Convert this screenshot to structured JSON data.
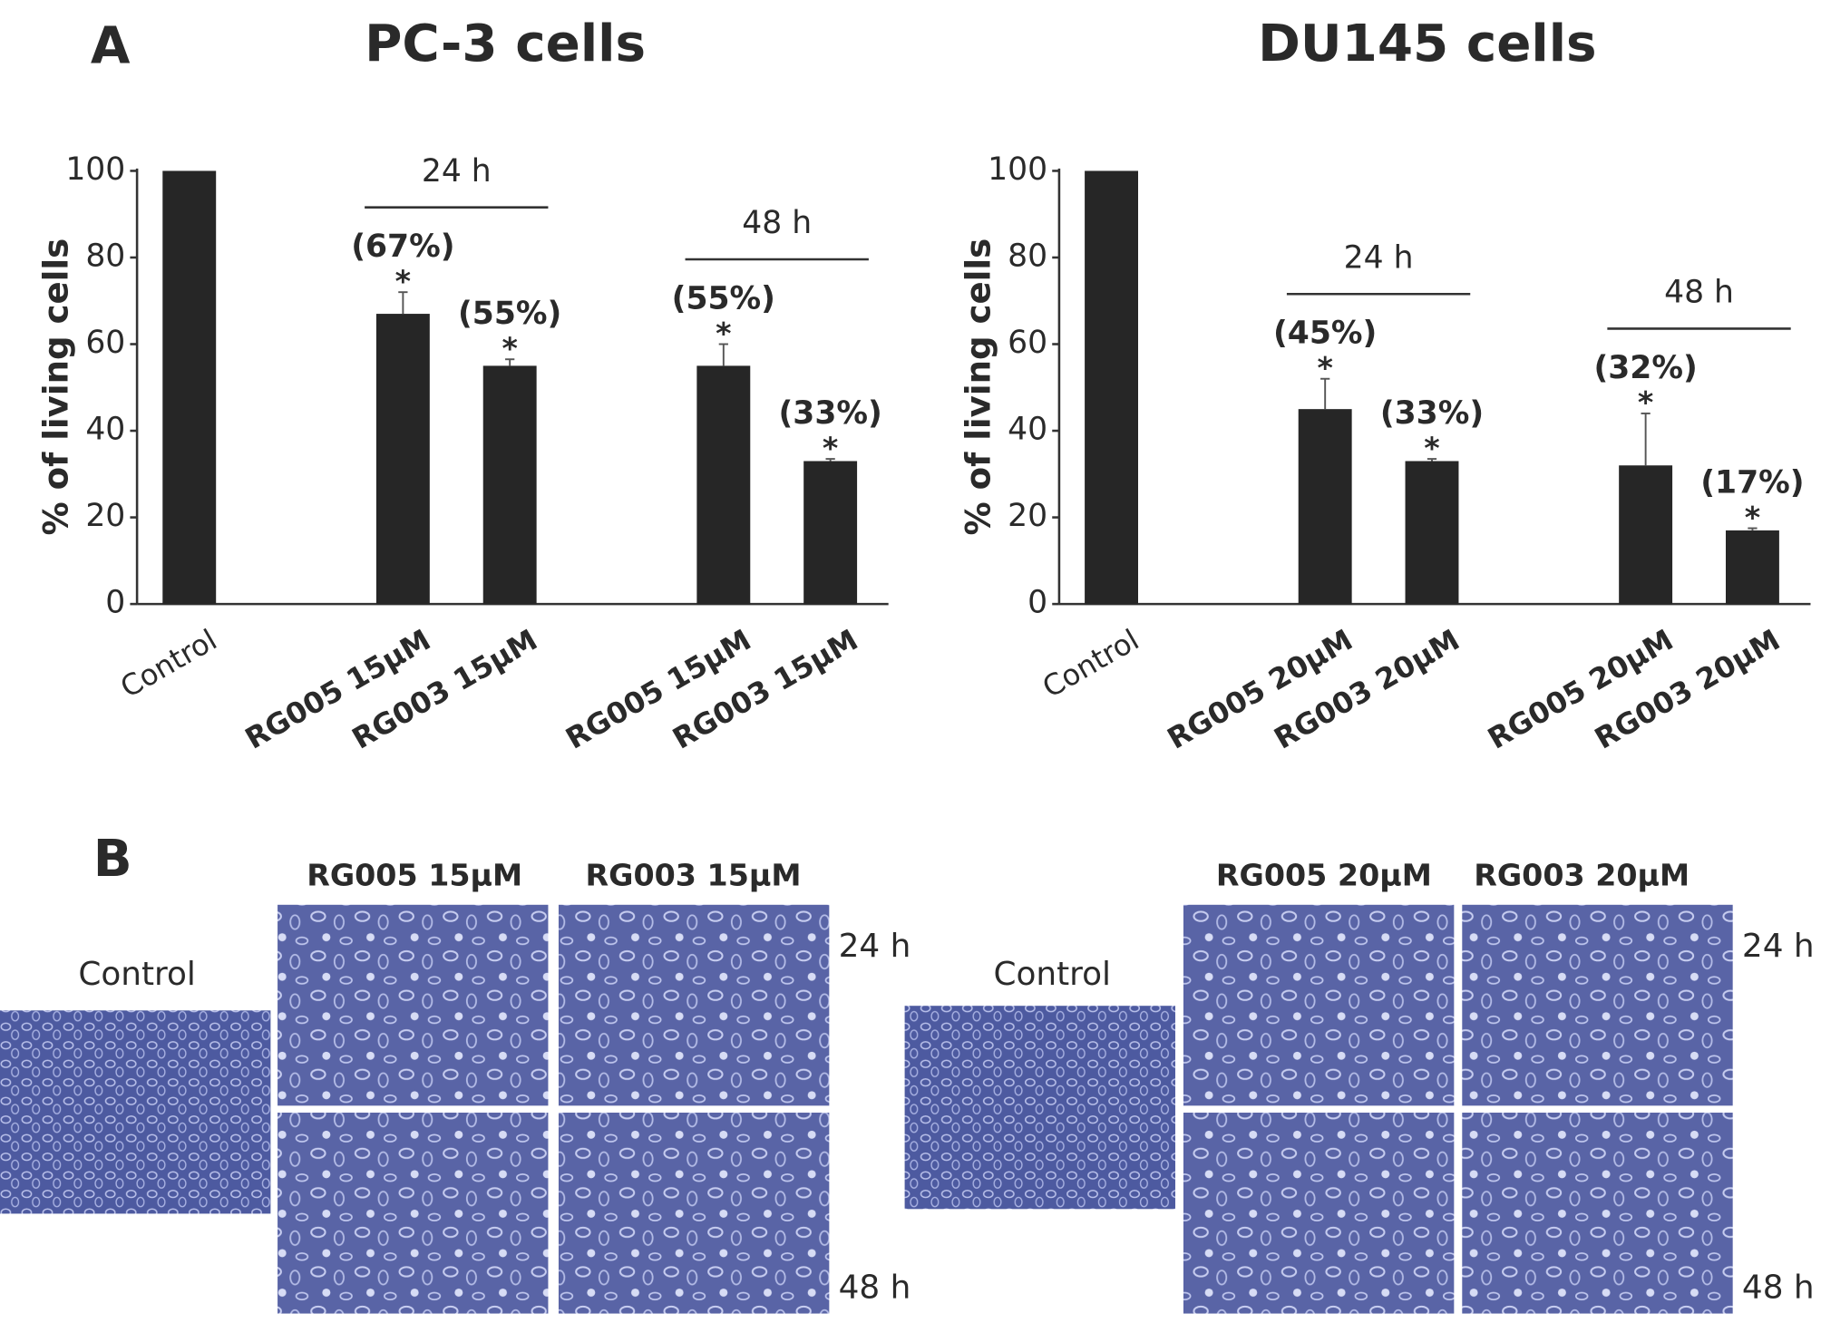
{
  "panel_labels": [
    "A",
    "B"
  ],
  "chart_data": [
    {
      "type": "bar",
      "title": "PC-3 cells",
      "ylabel": "% of living cells",
      "categories": [
        "Control",
        "RG005 15µM",
        "RG003 15µM",
        "RG005 15µM",
        "RG003 15µM"
      ],
      "values": [
        100,
        67,
        55,
        55,
        33
      ],
      "value_labels": [
        null,
        "(67%)",
        "(55%)",
        "(55%)",
        "(33%)"
      ],
      "errors": [
        null,
        5,
        1.5,
        5,
        0.5
      ],
      "significance": [
        null,
        "*",
        "*",
        "*",
        "*"
      ],
      "groups": [
        "24 h",
        "48 h"
      ],
      "color": "#262626",
      "ylim": [
        0,
        100
      ],
      "yticks": [
        0,
        20,
        40,
        60,
        80,
        100
      ]
    },
    {
      "type": "bar",
      "title": "DU145 cells",
      "ylabel": "% of living cells",
      "categories": [
        "Control",
        "RG005 20µM",
        "RG003 20µM",
        "RG005 20µM",
        "RG003 20µM"
      ],
      "values": [
        100,
        45,
        33,
        32,
        17
      ],
      "value_labels": [
        null,
        "(45%)",
        "(33%)",
        "(32%)",
        "(17%)"
      ],
      "errors": [
        null,
        7,
        0.5,
        12,
        0.5
      ],
      "significance": [
        null,
        "*",
        "*",
        "*",
        "*"
      ],
      "groups": [
        "24 h",
        "48 h"
      ],
      "color": "#262626",
      "ylim": [
        0,
        100
      ],
      "yticks": [
        0,
        20,
        40,
        60,
        80,
        100
      ]
    }
  ],
  "micrographs": [
    {
      "control": "Control",
      "columns": [
        "RG005 15µM",
        "RG003 15µM"
      ],
      "rows": [
        "24 h",
        "48 h"
      ]
    },
    {
      "control": "Control",
      "columns": [
        "RG005 20µM",
        "RG003 20µM"
      ],
      "rows": [
        "24 h",
        "48 h"
      ]
    }
  ]
}
